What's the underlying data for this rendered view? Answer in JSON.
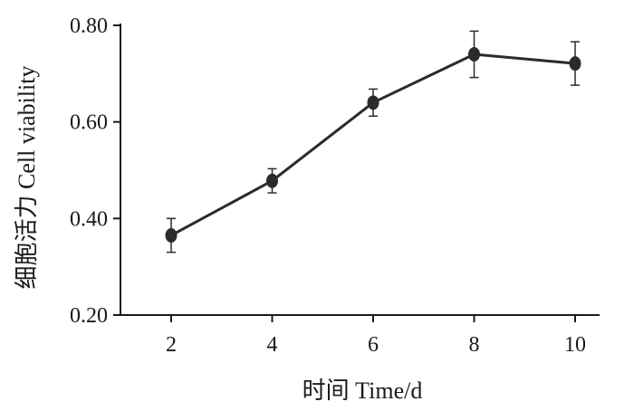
{
  "chart_data": {
    "type": "line",
    "title": "",
    "xlabel": "时间  Time/d",
    "ylabel": "细胞活力  Cell viability",
    "x": [
      2,
      4,
      6,
      8,
      10
    ],
    "x_tick_labels": [
      "2",
      "4",
      "6",
      "8",
      "10"
    ],
    "y_tick_labels": [
      "0.20",
      "0.40",
      "0.60",
      "0.80"
    ],
    "y_ticks": [
      0.2,
      0.4,
      0.6,
      0.8
    ],
    "ylim": [
      0.2,
      0.8
    ],
    "series": [
      {
        "values": [
          0.365,
          0.478,
          0.64,
          0.74,
          0.721
        ],
        "error": [
          0.035,
          0.025,
          0.028,
          0.048,
          0.045
        ],
        "color": "#2b2b2b"
      }
    ],
    "grid": false,
    "legend": "none"
  }
}
